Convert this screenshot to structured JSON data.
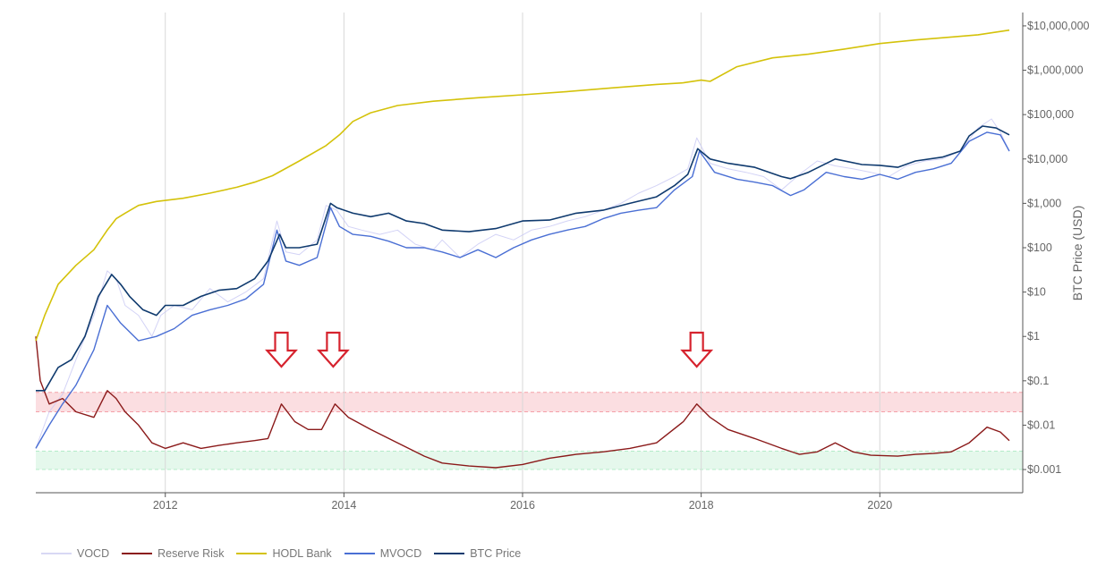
{
  "chart_data": {
    "type": "line",
    "scale_y": "log",
    "ylabel": "BTC Price (USD)",
    "xlim": [
      2010.55,
      2021.6
    ],
    "ylim": [
      0.0003,
      20000000
    ],
    "x_ticks": [
      {
        "value": 2012,
        "label": "2012"
      },
      {
        "value": 2014,
        "label": "2014"
      },
      {
        "value": 2016,
        "label": "2016"
      },
      {
        "value": 2018,
        "label": "2018"
      },
      {
        "value": 2020,
        "label": "2020"
      }
    ],
    "y_ticks": [
      {
        "value": 10000000,
        "label": "$10,000,000"
      },
      {
        "value": 1000000,
        "label": "$1,000,000"
      },
      {
        "value": 100000,
        "label": "$100,000"
      },
      {
        "value": 10000,
        "label": "$10,000"
      },
      {
        "value": 1000,
        "label": "$1,000"
      },
      {
        "value": 100,
        "label": "$100"
      },
      {
        "value": 10,
        "label": "$10"
      },
      {
        "value": 1,
        "label": "$1"
      },
      {
        "value": 0.1,
        "label": "$0.1"
      },
      {
        "value": 0.01,
        "label": "$0.01"
      },
      {
        "value": 0.001,
        "label": "$0.001"
      }
    ],
    "bands": [
      {
        "name": "high-risk",
        "from": 0.02,
        "to": 0.055,
        "color": "#f4a0a8"
      },
      {
        "name": "low-risk",
        "from": 0.001,
        "to": 0.0026,
        "color": "#b4ecc8"
      }
    ],
    "annotations": [
      {
        "type": "down-arrow",
        "x": 2013.3
      },
      {
        "type": "down-arrow",
        "x": 2013.88
      },
      {
        "type": "down-arrow",
        "x": 2017.95
      }
    ],
    "series": [
      {
        "name": "VOCD",
        "color": "#c8c8f4",
        "x": [
          2010.55,
          2010.7,
          2010.85,
          2011.0,
          2011.2,
          2011.35,
          2011.45,
          2011.55,
          2011.7,
          2011.85,
          2011.95,
          2012.1,
          2012.3,
          2012.5,
          2012.7,
          2012.9,
          2013.1,
          2013.25,
          2013.35,
          2013.5,
          2013.7,
          2013.8,
          2013.92,
          2014.05,
          2014.2,
          2014.4,
          2014.6,
          2014.8,
          2015.0,
          2015.1,
          2015.3,
          2015.5,
          2015.7,
          2015.9,
          2016.1,
          2016.3,
          2016.5,
          2016.7,
          2016.9,
          2017.1,
          2017.3,
          2017.5,
          2017.7,
          2017.85,
          2017.95,
          2018.1,
          2018.3,
          2018.5,
          2018.7,
          2018.9,
          2019.1,
          2019.3,
          2019.5,
          2019.7,
          2019.9,
          2020.1,
          2020.3,
          2020.5,
          2020.7,
          2020.9,
          2021.1,
          2021.25,
          2021.35,
          2021.45
        ],
        "values": [
          0.003,
          0.02,
          0.05,
          0.3,
          3,
          30,
          20,
          5,
          3,
          1,
          3,
          5,
          4,
          12,
          6,
          10,
          20,
          400,
          80,
          70,
          150,
          900,
          700,
          300,
          250,
          200,
          250,
          120,
          90,
          150,
          60,
          120,
          200,
          150,
          250,
          300,
          400,
          500,
          700,
          1000,
          1700,
          2500,
          4000,
          6000,
          30000,
          8000,
          6000,
          5000,
          4000,
          2000,
          4500,
          9000,
          7000,
          6000,
          5000,
          4000,
          7000,
          9000,
          10000,
          15000,
          50000,
          80000,
          40000,
          15000
        ]
      },
      {
        "name": "Reserve Risk",
        "color": "#8b1a1a",
        "x": [
          2010.55,
          2010.6,
          2010.7,
          2010.85,
          2011.0,
          2011.2,
          2011.35,
          2011.45,
          2011.55,
          2011.7,
          2011.85,
          2012.0,
          2012.2,
          2012.4,
          2012.6,
          2012.8,
          2013.0,
          2013.15,
          2013.3,
          2013.45,
          2013.6,
          2013.75,
          2013.9,
          2014.05,
          2014.3,
          2014.6,
          2014.9,
          2015.1,
          2015.4,
          2015.7,
          2016.0,
          2016.3,
          2016.6,
          2016.9,
          2017.2,
          2017.5,
          2017.8,
          2017.95,
          2018.1,
          2018.3,
          2018.6,
          2018.9,
          2019.1,
          2019.3,
          2019.5,
          2019.7,
          2019.9,
          2020.2,
          2020.4,
          2020.6,
          2020.8,
          2021.0,
          2021.2,
          2021.35,
          2021.45
        ],
        "values": [
          1,
          0.1,
          0.03,
          0.04,
          0.02,
          0.015,
          0.06,
          0.04,
          0.02,
          0.01,
          0.004,
          0.003,
          0.004,
          0.003,
          0.0035,
          0.004,
          0.0045,
          0.005,
          0.03,
          0.012,
          0.008,
          0.008,
          0.03,
          0.015,
          0.008,
          0.004,
          0.002,
          0.0014,
          0.0012,
          0.0011,
          0.0013,
          0.0018,
          0.0022,
          0.0025,
          0.003,
          0.004,
          0.012,
          0.03,
          0.015,
          0.008,
          0.005,
          0.003,
          0.0022,
          0.0025,
          0.004,
          0.0025,
          0.0021,
          0.002,
          0.0022,
          0.0023,
          0.0025,
          0.004,
          0.009,
          0.007,
          0.0045
        ]
      },
      {
        "name": "HODL Bank",
        "color": "#d4c20a",
        "x": [
          2010.55,
          2010.65,
          2010.8,
          2011.0,
          2011.2,
          2011.35,
          2011.45,
          2011.55,
          2011.7,
          2011.9,
          2012.2,
          2012.5,
          2012.8,
          2013.0,
          2013.2,
          2013.5,
          2013.8,
          2013.95,
          2014.1,
          2014.3,
          2014.6,
          2015.0,
          2015.5,
          2016.0,
          2016.5,
          2017.0,
          2017.5,
          2017.8,
          2018.0,
          2018.1,
          2018.4,
          2018.8,
          2019.2,
          2019.6,
          2020.0,
          2020.4,
          2020.8,
          2021.1,
          2021.45
        ],
        "values": [
          0.8,
          3,
          15,
          40,
          90,
          250,
          450,
          600,
          900,
          1100,
          1300,
          1700,
          2300,
          3000,
          4200,
          9000,
          20000,
          35000,
          70000,
          110000,
          160000,
          200000,
          240000,
          280000,
          330000,
          400000,
          480000,
          520000,
          600000,
          560000,
          1200000,
          1900000,
          2300000,
          3000000,
          4000000,
          4800000,
          5600000,
          6300000,
          8000000
        ]
      },
      {
        "name": "MVOCD",
        "color": "#4a6fd4",
        "x": [
          2010.55,
          2010.7,
          2010.85,
          2011.0,
          2011.2,
          2011.35,
          2011.5,
          2011.7,
          2011.9,
          2012.1,
          2012.3,
          2012.5,
          2012.7,
          2012.9,
          2013.1,
          2013.25,
          2013.35,
          2013.5,
          2013.7,
          2013.85,
          2013.95,
          2014.1,
          2014.3,
          2014.5,
          2014.7,
          2014.9,
          2015.1,
          2015.3,
          2015.5,
          2015.7,
          2015.9,
          2016.1,
          2016.3,
          2016.5,
          2016.7,
          2016.9,
          2017.1,
          2017.3,
          2017.5,
          2017.7,
          2017.9,
          2017.98,
          2018.15,
          2018.4,
          2018.6,
          2018.8,
          2019.0,
          2019.15,
          2019.4,
          2019.6,
          2019.8,
          2020.0,
          2020.2,
          2020.4,
          2020.6,
          2020.8,
          2021.0,
          2021.2,
          2021.35,
          2021.45
        ],
        "values": [
          0.003,
          0.01,
          0.03,
          0.08,
          0.5,
          5,
          2,
          0.8,
          1,
          1.5,
          3,
          4,
          5,
          7,
          15,
          250,
          50,
          40,
          60,
          800,
          300,
          200,
          180,
          140,
          100,
          100,
          80,
          60,
          90,
          60,
          100,
          150,
          200,
          250,
          300,
          450,
          600,
          700,
          800,
          2000,
          4000,
          15000,
          5000,
          3500,
          3000,
          2500,
          1500,
          2000,
          5000,
          4000,
          3500,
          4500,
          3500,
          5000,
          6000,
          8000,
          25000,
          40000,
          35000,
          15000
        ]
      },
      {
        "name": "BTC Price",
        "color": "#0f3a6e",
        "x": [
          2010.55,
          2010.65,
          2010.8,
          2010.95,
          2011.1,
          2011.25,
          2011.4,
          2011.5,
          2011.6,
          2011.75,
          2011.9,
          2012.0,
          2012.2,
          2012.4,
          2012.6,
          2012.8,
          2013.0,
          2013.15,
          2013.28,
          2013.35,
          2013.5,
          2013.7,
          2013.85,
          2013.92,
          2014.1,
          2014.3,
          2014.5,
          2014.7,
          2014.9,
          2015.1,
          2015.4,
          2015.7,
          2016.0,
          2016.3,
          2016.6,
          2016.9,
          2017.2,
          2017.5,
          2017.7,
          2017.85,
          2017.96,
          2018.1,
          2018.3,
          2018.6,
          2018.9,
          2019.0,
          2019.2,
          2019.5,
          2019.8,
          2020.0,
          2020.2,
          2020.4,
          2020.7,
          2020.9,
          2021.0,
          2021.15,
          2021.3,
          2021.45
        ],
        "values": [
          0.06,
          0.06,
          0.2,
          0.3,
          1,
          8,
          25,
          15,
          8,
          4,
          3,
          5,
          5,
          8,
          11,
          12,
          20,
          50,
          200,
          100,
          100,
          120,
          1000,
          800,
          600,
          500,
          600,
          400,
          350,
          250,
          230,
          270,
          400,
          420,
          600,
          700,
          1000,
          1400,
          2500,
          4500,
          17000,
          10000,
          8000,
          6500,
          4000,
          3600,
          5000,
          10000,
          7500,
          7200,
          6500,
          9000,
          11000,
          15000,
          33000,
          55000,
          50000,
          35000
        ]
      }
    ]
  },
  "legend": {
    "items": [
      {
        "label": "VOCD",
        "color": "#d8d8f4"
      },
      {
        "label": "Reserve Risk",
        "color": "#8b1a1a"
      },
      {
        "label": "HODL Bank",
        "color": "#d4c20a"
      },
      {
        "label": "MVOCD",
        "color": "#4a6fd4"
      },
      {
        "label": "BTC Price",
        "color": "#0f3a6e"
      }
    ]
  }
}
